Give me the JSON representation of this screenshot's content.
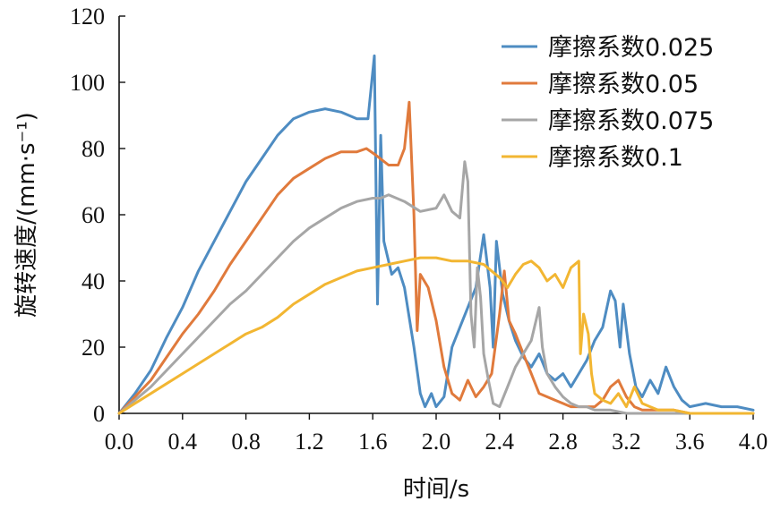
{
  "chart_data": {
    "type": "line",
    "xlabel": "时间/s",
    "ylabel": "旋转速度/(mm·s⁻¹)",
    "xlim": [
      0,
      4.0
    ],
    "ylim": [
      0,
      120
    ],
    "xticks": [
      "0.0",
      "0.4",
      "0.8",
      "1.2",
      "1.6",
      "2.0",
      "2.4",
      "2.8",
      "3.2",
      "3.6",
      "4.0"
    ],
    "yticks": [
      "0",
      "20",
      "40",
      "60",
      "80",
      "100",
      "120"
    ],
    "grid": false,
    "legend_position": "top-right",
    "series": [
      {
        "name": "摩擦系数0.025",
        "color": "#4e8cc2",
        "points": [
          [
            0,
            0
          ],
          [
            0.1,
            6
          ],
          [
            0.2,
            13
          ],
          [
            0.3,
            23
          ],
          [
            0.4,
            32
          ],
          [
            0.5,
            43
          ],
          [
            0.6,
            52
          ],
          [
            0.7,
            61
          ],
          [
            0.8,
            70
          ],
          [
            0.9,
            77
          ],
          [
            1.0,
            84
          ],
          [
            1.1,
            89
          ],
          [
            1.2,
            91
          ],
          [
            1.3,
            92
          ],
          [
            1.4,
            91
          ],
          [
            1.5,
            89
          ],
          [
            1.57,
            89
          ],
          [
            1.61,
            108
          ],
          [
            1.63,
            33
          ],
          [
            1.65,
            84
          ],
          [
            1.67,
            52
          ],
          [
            1.72,
            42
          ],
          [
            1.76,
            44
          ],
          [
            1.8,
            38
          ],
          [
            1.86,
            20
          ],
          [
            1.9,
            6
          ],
          [
            1.93,
            2
          ],
          [
            1.97,
            6
          ],
          [
            2.0,
            2
          ],
          [
            2.05,
            5
          ],
          [
            2.1,
            20
          ],
          [
            2.15,
            26
          ],
          [
            2.2,
            32
          ],
          [
            2.25,
            38
          ],
          [
            2.3,
            54
          ],
          [
            2.34,
            38
          ],
          [
            2.36,
            20
          ],
          [
            2.38,
            52
          ],
          [
            2.42,
            36
          ],
          [
            2.46,
            28
          ],
          [
            2.5,
            22
          ],
          [
            2.55,
            17
          ],
          [
            2.6,
            14
          ],
          [
            2.65,
            18
          ],
          [
            2.7,
            12
          ],
          [
            2.75,
            10
          ],
          [
            2.8,
            12
          ],
          [
            2.85,
            8
          ],
          [
            2.9,
            12
          ],
          [
            2.95,
            16
          ],
          [
            3.0,
            22
          ],
          [
            3.05,
            26
          ],
          [
            3.1,
            37
          ],
          [
            3.13,
            34
          ],
          [
            3.16,
            20
          ],
          [
            3.18,
            33
          ],
          [
            3.22,
            18
          ],
          [
            3.26,
            8
          ],
          [
            3.3,
            5
          ],
          [
            3.35,
            10
          ],
          [
            3.4,
            6
          ],
          [
            3.45,
            14
          ],
          [
            3.5,
            8
          ],
          [
            3.55,
            4
          ],
          [
            3.6,
            2
          ],
          [
            3.7,
            3
          ],
          [
            3.8,
            2
          ],
          [
            3.9,
            2
          ],
          [
            4.0,
            1
          ]
        ]
      },
      {
        "name": "摩擦系数0.05",
        "color": "#e07a3c",
        "points": [
          [
            0,
            0
          ],
          [
            0.1,
            5
          ],
          [
            0.2,
            10
          ],
          [
            0.3,
            17
          ],
          [
            0.4,
            24
          ],
          [
            0.5,
            30
          ],
          [
            0.6,
            37
          ],
          [
            0.7,
            45
          ],
          [
            0.8,
            52
          ],
          [
            0.9,
            59
          ],
          [
            1.0,
            66
          ],
          [
            1.1,
            71
          ],
          [
            1.2,
            74
          ],
          [
            1.3,
            77
          ],
          [
            1.4,
            79
          ],
          [
            1.5,
            79
          ],
          [
            1.56,
            80
          ],
          [
            1.62,
            78
          ],
          [
            1.7,
            75
          ],
          [
            1.76,
            75
          ],
          [
            1.8,
            80
          ],
          [
            1.83,
            94
          ],
          [
            1.86,
            60
          ],
          [
            1.88,
            25
          ],
          [
            1.9,
            42
          ],
          [
            1.95,
            38
          ],
          [
            2.0,
            28
          ],
          [
            2.05,
            14
          ],
          [
            2.1,
            6
          ],
          [
            2.15,
            4
          ],
          [
            2.2,
            10
          ],
          [
            2.25,
            5
          ],
          [
            2.3,
            8
          ],
          [
            2.35,
            12
          ],
          [
            2.4,
            30
          ],
          [
            2.43,
            43
          ],
          [
            2.46,
            28
          ],
          [
            2.5,
            24
          ],
          [
            2.55,
            18
          ],
          [
            2.6,
            12
          ],
          [
            2.65,
            6
          ],
          [
            2.7,
            5
          ],
          [
            2.75,
            4
          ],
          [
            2.8,
            3
          ],
          [
            2.85,
            2
          ],
          [
            2.9,
            2
          ],
          [
            3.0,
            2
          ],
          [
            3.05,
            4
          ],
          [
            3.1,
            8
          ],
          [
            3.15,
            10
          ],
          [
            3.2,
            5
          ],
          [
            3.25,
            2
          ],
          [
            3.3,
            1
          ],
          [
            3.4,
            1
          ],
          [
            3.5,
            1
          ],
          [
            3.6,
            0
          ],
          [
            4.0,
            0
          ]
        ]
      },
      {
        "name": "摩擦系数0.075",
        "color": "#a6a6a6",
        "points": [
          [
            0,
            0
          ],
          [
            0.1,
            4
          ],
          [
            0.2,
            8
          ],
          [
            0.3,
            13
          ],
          [
            0.4,
            18
          ],
          [
            0.5,
            23
          ],
          [
            0.6,
            28
          ],
          [
            0.7,
            33
          ],
          [
            0.8,
            37
          ],
          [
            0.9,
            42
          ],
          [
            1.0,
            47
          ],
          [
            1.1,
            52
          ],
          [
            1.2,
            56
          ],
          [
            1.3,
            59
          ],
          [
            1.4,
            62
          ],
          [
            1.5,
            64
          ],
          [
            1.6,
            65
          ],
          [
            1.65,
            65
          ],
          [
            1.7,
            66
          ],
          [
            1.8,
            64
          ],
          [
            1.9,
            61
          ],
          [
            2.0,
            62
          ],
          [
            2.05,
            66
          ],
          [
            2.1,
            61
          ],
          [
            2.15,
            59
          ],
          [
            2.18,
            76
          ],
          [
            2.2,
            70
          ],
          [
            2.22,
            30
          ],
          [
            2.24,
            20
          ],
          [
            2.26,
            44
          ],
          [
            2.28,
            35
          ],
          [
            2.3,
            18
          ],
          [
            2.33,
            10
          ],
          [
            2.36,
            3
          ],
          [
            2.4,
            2
          ],
          [
            2.45,
            8
          ],
          [
            2.5,
            14
          ],
          [
            2.55,
            18
          ],
          [
            2.6,
            22
          ],
          [
            2.65,
            32
          ],
          [
            2.67,
            20
          ],
          [
            2.7,
            12
          ],
          [
            2.75,
            8
          ],
          [
            2.8,
            5
          ],
          [
            2.85,
            3
          ],
          [
            2.9,
            2
          ],
          [
            2.95,
            2
          ],
          [
            3.0,
            1
          ],
          [
            3.1,
            1
          ],
          [
            3.2,
            0
          ],
          [
            4.0,
            0
          ]
        ]
      },
      {
        "name": "摩擦系数0.1",
        "color": "#f2b632",
        "points": [
          [
            0,
            0
          ],
          [
            0.1,
            3
          ],
          [
            0.2,
            6
          ],
          [
            0.3,
            9
          ],
          [
            0.4,
            12
          ],
          [
            0.5,
            15
          ],
          [
            0.6,
            18
          ],
          [
            0.7,
            21
          ],
          [
            0.8,
            24
          ],
          [
            0.9,
            26
          ],
          [
            1.0,
            29
          ],
          [
            1.1,
            33
          ],
          [
            1.2,
            36
          ],
          [
            1.3,
            39
          ],
          [
            1.4,
            41
          ],
          [
            1.5,
            43
          ],
          [
            1.6,
            44
          ],
          [
            1.7,
            45
          ],
          [
            1.8,
            46
          ],
          [
            1.9,
            47
          ],
          [
            2.0,
            47
          ],
          [
            2.1,
            46
          ],
          [
            2.2,
            46
          ],
          [
            2.3,
            45
          ],
          [
            2.4,
            41
          ],
          [
            2.45,
            38
          ],
          [
            2.5,
            42
          ],
          [
            2.55,
            45
          ],
          [
            2.6,
            46
          ],
          [
            2.65,
            44
          ],
          [
            2.7,
            40
          ],
          [
            2.75,
            42
          ],
          [
            2.8,
            38
          ],
          [
            2.85,
            44
          ],
          [
            2.9,
            46
          ],
          [
            2.91,
            18
          ],
          [
            2.93,
            30
          ],
          [
            2.96,
            24
          ],
          [
            2.98,
            12
          ],
          [
            3.0,
            6
          ],
          [
            3.05,
            4
          ],
          [
            3.1,
            3
          ],
          [
            3.15,
            6
          ],
          [
            3.2,
            2
          ],
          [
            3.25,
            8
          ],
          [
            3.3,
            3
          ],
          [
            3.35,
            2
          ],
          [
            3.4,
            1
          ],
          [
            3.5,
            1
          ],
          [
            3.6,
            0
          ],
          [
            4.0,
            0
          ]
        ]
      }
    ]
  }
}
